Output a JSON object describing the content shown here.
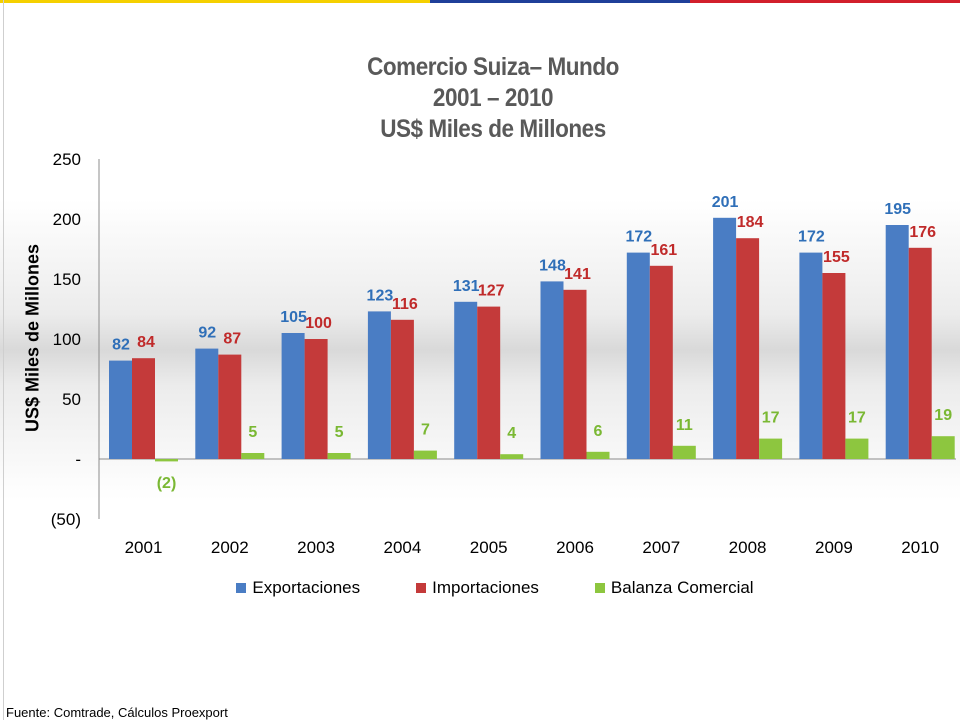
{
  "chart_data": {
    "type": "bar",
    "title": [
      "Comercio Suiza– Mundo",
      "2001 – 2010",
      "US$ Miles de Millones"
    ],
    "ylabel": "US$ Miles de Millones",
    "ylim": [
      -50,
      250
    ],
    "yticks": [
      {
        "value": 250,
        "label": "250"
      },
      {
        "value": 200,
        "label": "200"
      },
      {
        "value": 150,
        "label": "150"
      },
      {
        "value": 100,
        "label": "100"
      },
      {
        "value": 50,
        "label": "50"
      },
      {
        "value": 0,
        "label": "-"
      },
      {
        "value": -50,
        "label": "(50)"
      }
    ],
    "categories": [
      "2001",
      "2002",
      "2003",
      "2004",
      "2005",
      "2006",
      "2007",
      "2008",
      "2009",
      "2010"
    ],
    "series": [
      {
        "name": "Exportaciones",
        "color": "#4a7dc4",
        "label_color": "#2f6fb8",
        "values": [
          82,
          92,
          105,
          123,
          131,
          148,
          172,
          201,
          172,
          195
        ],
        "labels": [
          "82",
          "92",
          "105",
          "123",
          "131",
          "148",
          "172",
          "201",
          "172",
          "195"
        ]
      },
      {
        "name": "Importaciones",
        "color": "#c43a3a",
        "label_color": "#c02a2a",
        "values": [
          84,
          87,
          100,
          116,
          127,
          141,
          161,
          184,
          155,
          176
        ],
        "labels": [
          "84",
          "87",
          "100",
          "116",
          "127",
          "141",
          "161",
          "184",
          "155",
          "176"
        ]
      },
      {
        "name": "Balanza Comercial",
        "color": "#8dc63f",
        "label_color": "#7ab833",
        "values": [
          -2,
          5,
          5,
          7,
          4,
          6,
          11,
          17,
          17,
          19
        ],
        "labels": [
          "(2)",
          "5",
          "5",
          "7",
          "4",
          "6",
          "11",
          "17",
          "17",
          "19"
        ]
      }
    ],
    "legend_position": "bottom",
    "grid": false
  },
  "footer": {
    "source": "Fuente: Comtrade, Cálculos Proexport"
  },
  "decor": {
    "stripe_colors": [
      "#f5d000",
      "#1f3f99",
      "#d21f2b"
    ]
  }
}
